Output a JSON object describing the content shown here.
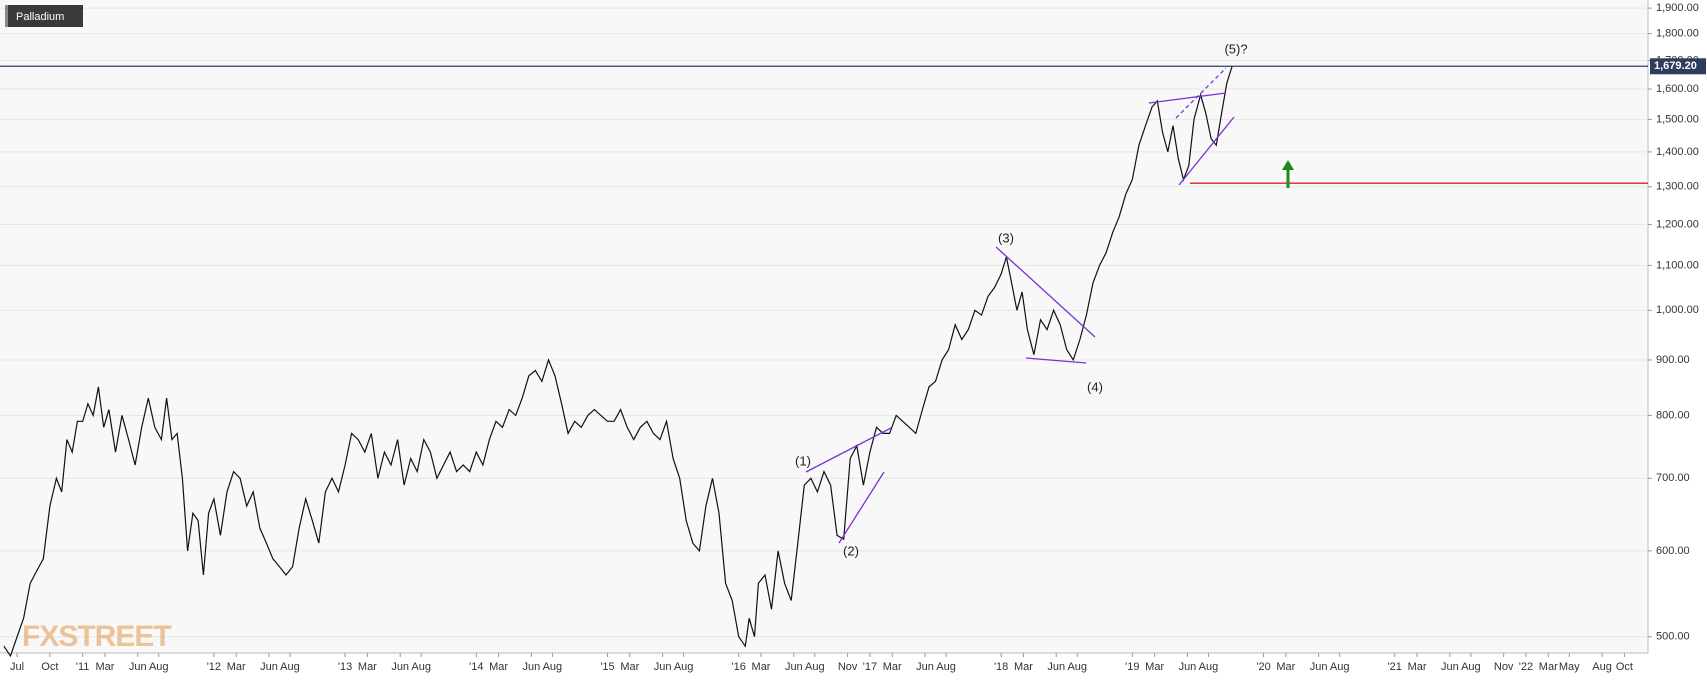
{
  "chart_data": {
    "type": "line",
    "series": [
      {
        "name": "Palladium",
        "color": "#111111",
        "values": [
          490,
          480,
          500,
          520,
          560,
          575,
          590,
          660,
          700,
          680,
          760,
          740,
          790,
          790,
          820,
          800,
          850,
          780,
          810,
          740,
          800,
          760,
          720,
          780,
          830,
          780,
          760,
          830,
          760,
          770,
          700,
          600,
          650,
          640,
          570,
          650,
          670,
          620,
          680,
          710,
          700,
          660,
          680,
          630,
          610,
          590,
          580,
          570,
          580,
          630,
          670,
          640,
          610,
          680,
          700,
          680,
          720,
          770,
          760,
          740,
          770,
          700,
          740,
          720,
          760,
          690,
          730,
          710,
          760,
          740,
          700,
          720,
          740,
          710,
          720,
          710,
          740,
          720,
          760,
          790,
          780,
          810,
          800,
          830,
          870,
          880,
          860,
          900,
          870,
          820,
          770,
          790,
          780,
          800,
          810,
          800,
          790,
          790,
          810,
          780,
          760,
          780,
          790,
          770,
          760,
          790,
          730,
          700,
          640,
          610,
          600,
          660,
          700,
          650,
          560,
          540,
          500,
          490,
          520,
          500,
          560,
          570,
          530,
          600,
          560,
          540,
          610,
          690,
          700,
          680,
          710,
          690,
          620,
          615,
          730,
          750,
          690,
          740,
          780,
          770,
          770,
          800,
          790,
          780,
          770,
          810,
          850,
          860,
          900,
          920,
          970,
          940,
          960,
          1000,
          990,
          1030,
          1050,
          1080,
          1120,
          1060,
          1000,
          1040,
          960,
          910,
          980,
          960,
          1000,
          970,
          920,
          900,
          940,
          990,
          1060,
          1100,
          1130,
          1180,
          1220,
          1280,
          1320,
          1420,
          1480,
          1540,
          1560,
          1460,
          1400,
          1480,
          1380,
          1320,
          1360,
          1500,
          1580,
          1520,
          1440,
          1420,
          1520,
          1620,
          1679.2
        ]
      }
    ],
    "x": [
      2010.4,
      2010.45,
      2010.5,
      2010.55,
      2010.6,
      2010.65,
      2010.7,
      2010.75,
      2010.8,
      2010.84,
      2010.88,
      2010.92,
      2010.96,
      2011.0,
      2011.04,
      2011.08,
      2011.12,
      2011.16,
      2011.2,
      2011.25,
      2011.3,
      2011.35,
      2011.4,
      2011.45,
      2011.5,
      2011.55,
      2011.6,
      2011.64,
      2011.68,
      2011.72,
      2011.76,
      2011.8,
      2011.84,
      2011.88,
      2011.92,
      2011.96,
      2012.0,
      2012.05,
      2012.1,
      2012.15,
      2012.2,
      2012.25,
      2012.3,
      2012.35,
      2012.4,
      2012.45,
      2012.5,
      2012.55,
      2012.6,
      2012.65,
      2012.7,
      2012.75,
      2012.8,
      2012.85,
      2012.9,
      2012.95,
      2013.0,
      2013.05,
      2013.1,
      2013.15,
      2013.2,
      2013.25,
      2013.3,
      2013.35,
      2013.4,
      2013.45,
      2013.5,
      2013.55,
      2013.6,
      2013.65,
      2013.7,
      2013.75,
      2013.8,
      2013.85,
      2013.9,
      2013.95,
      2014.0,
      2014.05,
      2014.1,
      2014.15,
      2014.2,
      2014.25,
      2014.3,
      2014.35,
      2014.4,
      2014.45,
      2014.5,
      2014.55,
      2014.6,
      2014.65,
      2014.7,
      2014.75,
      2014.8,
      2014.85,
      2014.9,
      2014.95,
      2015.0,
      2015.05,
      2015.1,
      2015.15,
      2015.2,
      2015.25,
      2015.3,
      2015.35,
      2015.4,
      2015.45,
      2015.5,
      2015.55,
      2015.6,
      2015.65,
      2015.7,
      2015.75,
      2015.8,
      2015.85,
      2015.9,
      2015.95,
      2016.0,
      2016.05,
      2016.08,
      2016.12,
      2016.15,
      2016.2,
      2016.25,
      2016.3,
      2016.35,
      2016.4,
      2016.45,
      2016.5,
      2016.55,
      2016.6,
      2016.65,
      2016.7,
      2016.75,
      2016.8,
      2016.85,
      2016.9,
      2016.95,
      2017.0,
      2017.05,
      2017.1,
      2017.15,
      2017.2,
      2017.25,
      2017.3,
      2017.35,
      2017.4,
      2017.45,
      2017.5,
      2017.55,
      2017.6,
      2017.65,
      2017.7,
      2017.75,
      2017.8,
      2017.85,
      2017.9,
      2017.95,
      2018.0,
      2018.04,
      2018.08,
      2018.12,
      2018.16,
      2018.2,
      2018.25,
      2018.3,
      2018.35,
      2018.4,
      2018.45,
      2018.5,
      2018.55,
      2018.6,
      2018.65,
      2018.7,
      2018.75,
      2018.8,
      2018.85,
      2018.9,
      2018.95,
      2019.0,
      2019.05,
      2019.1,
      2019.15,
      2019.19,
      2019.23,
      2019.27,
      2019.31,
      2019.35,
      2019.39,
      2019.43,
      2019.47,
      2019.52,
      2019.56,
      2019.6,
      2019.64,
      2019.68,
      2019.72,
      2019.76
    ],
    "xlim": [
      2010.37,
      2022.93
    ],
    "xticks": [
      {
        "value": 2010.5,
        "label": "Jul"
      },
      {
        "value": 2010.75,
        "label": "Oct"
      },
      {
        "value": 2011,
        "label": "'11"
      },
      {
        "value": 2011.17,
        "label": "Mar"
      },
      {
        "value": 2011.42,
        "label": "Jun"
      },
      {
        "value": 2011.58,
        "label": "Aug"
      },
      {
        "value": 2012,
        "label": "'12"
      },
      {
        "value": 2012.17,
        "label": "Mar"
      },
      {
        "value": 2012.42,
        "label": "Jun"
      },
      {
        "value": 2012.58,
        "label": "Aug"
      },
      {
        "value": 2013,
        "label": "'13"
      },
      {
        "value": 2013.17,
        "label": "Mar"
      },
      {
        "value": 2013.42,
        "label": "Jun"
      },
      {
        "value": 2013.58,
        "label": "Aug"
      },
      {
        "value": 2014,
        "label": "'14"
      },
      {
        "value": 2014.17,
        "label": "Mar"
      },
      {
        "value": 2014.42,
        "label": "Jun"
      },
      {
        "value": 2014.58,
        "label": "Aug"
      },
      {
        "value": 2015,
        "label": "'15"
      },
      {
        "value": 2015.17,
        "label": "Mar"
      },
      {
        "value": 2015.42,
        "label": "Jun"
      },
      {
        "value": 2015.58,
        "label": "Aug"
      },
      {
        "value": 2016,
        "label": "'16"
      },
      {
        "value": 2016.17,
        "label": "Mar"
      },
      {
        "value": 2016.42,
        "label": "Jun"
      },
      {
        "value": 2016.58,
        "label": "Aug"
      },
      {
        "value": 2016.83,
        "label": "Nov"
      },
      {
        "value": 2017,
        "label": "'17"
      },
      {
        "value": 2017.17,
        "label": "Mar"
      },
      {
        "value": 2017.42,
        "label": "Jun"
      },
      {
        "value": 2017.58,
        "label": "Aug"
      },
      {
        "value": 2018,
        "label": "'18"
      },
      {
        "value": 2018.17,
        "label": "Mar"
      },
      {
        "value": 2018.42,
        "label": "Jun"
      },
      {
        "value": 2018.58,
        "label": "Aug"
      },
      {
        "value": 2019,
        "label": "'19"
      },
      {
        "value": 2019.17,
        "label": "Mar"
      },
      {
        "value": 2019.42,
        "label": "Jun"
      },
      {
        "value": 2019.58,
        "label": "Aug"
      },
      {
        "value": 2020,
        "label": "'20"
      },
      {
        "value": 2020.17,
        "label": "Mar"
      },
      {
        "value": 2020.42,
        "label": "Jun"
      },
      {
        "value": 2020.58,
        "label": "Aug"
      },
      {
        "value": 2021,
        "label": "'21"
      },
      {
        "value": 2021.17,
        "label": "Mar"
      },
      {
        "value": 2021.42,
        "label": "Jun"
      },
      {
        "value": 2021.58,
        "label": "Aug"
      },
      {
        "value": 2021.83,
        "label": "Nov"
      },
      {
        "value": 2022,
        "label": "'22"
      },
      {
        "value": 2022.17,
        "label": "Mar"
      },
      {
        "value": 2022.33,
        "label": "May"
      },
      {
        "value": 2022.58,
        "label": "Aug"
      },
      {
        "value": 2022.75,
        "label": "Oct"
      }
    ],
    "ylim": [
      483,
      1933
    ],
    "log_scale": true,
    "grid": true,
    "yticks": [
      {
        "value": 500,
        "label": "500.00"
      },
      {
        "value": 600,
        "label": "600.00"
      },
      {
        "value": 700,
        "label": "700.00"
      },
      {
        "value": 800,
        "label": "800.00"
      },
      {
        "value": 900,
        "label": "900.00"
      },
      {
        "value": 1000,
        "label": "1,000.00"
      },
      {
        "value": 1100,
        "label": "1,100.00"
      },
      {
        "value": 1200,
        "label": "1,200.00"
      },
      {
        "value": 1300,
        "label": "1,300.00"
      },
      {
        "value": 1400,
        "label": "1,400.00"
      },
      {
        "value": 1500,
        "label": "1,500.00"
      },
      {
        "value": 1600,
        "label": "1,600.00"
      },
      {
        "value": 1700,
        "label": "1,700.00"
      },
      {
        "value": 1800,
        "label": "1,800.00"
      },
      {
        "value": 1900,
        "label": "1,900.00"
      }
    ],
    "last_price": {
      "value": 1679.2,
      "label": "1,679.20",
      "color": "#2c3e5c"
    },
    "reference_line": {
      "value": 1310,
      "color": "#e02020"
    },
    "annotations": [
      "(1)",
      "(2)",
      "(3)",
      "(4)",
      "(5)?"
    ],
    "watermark": "FXSTREET"
  }
}
